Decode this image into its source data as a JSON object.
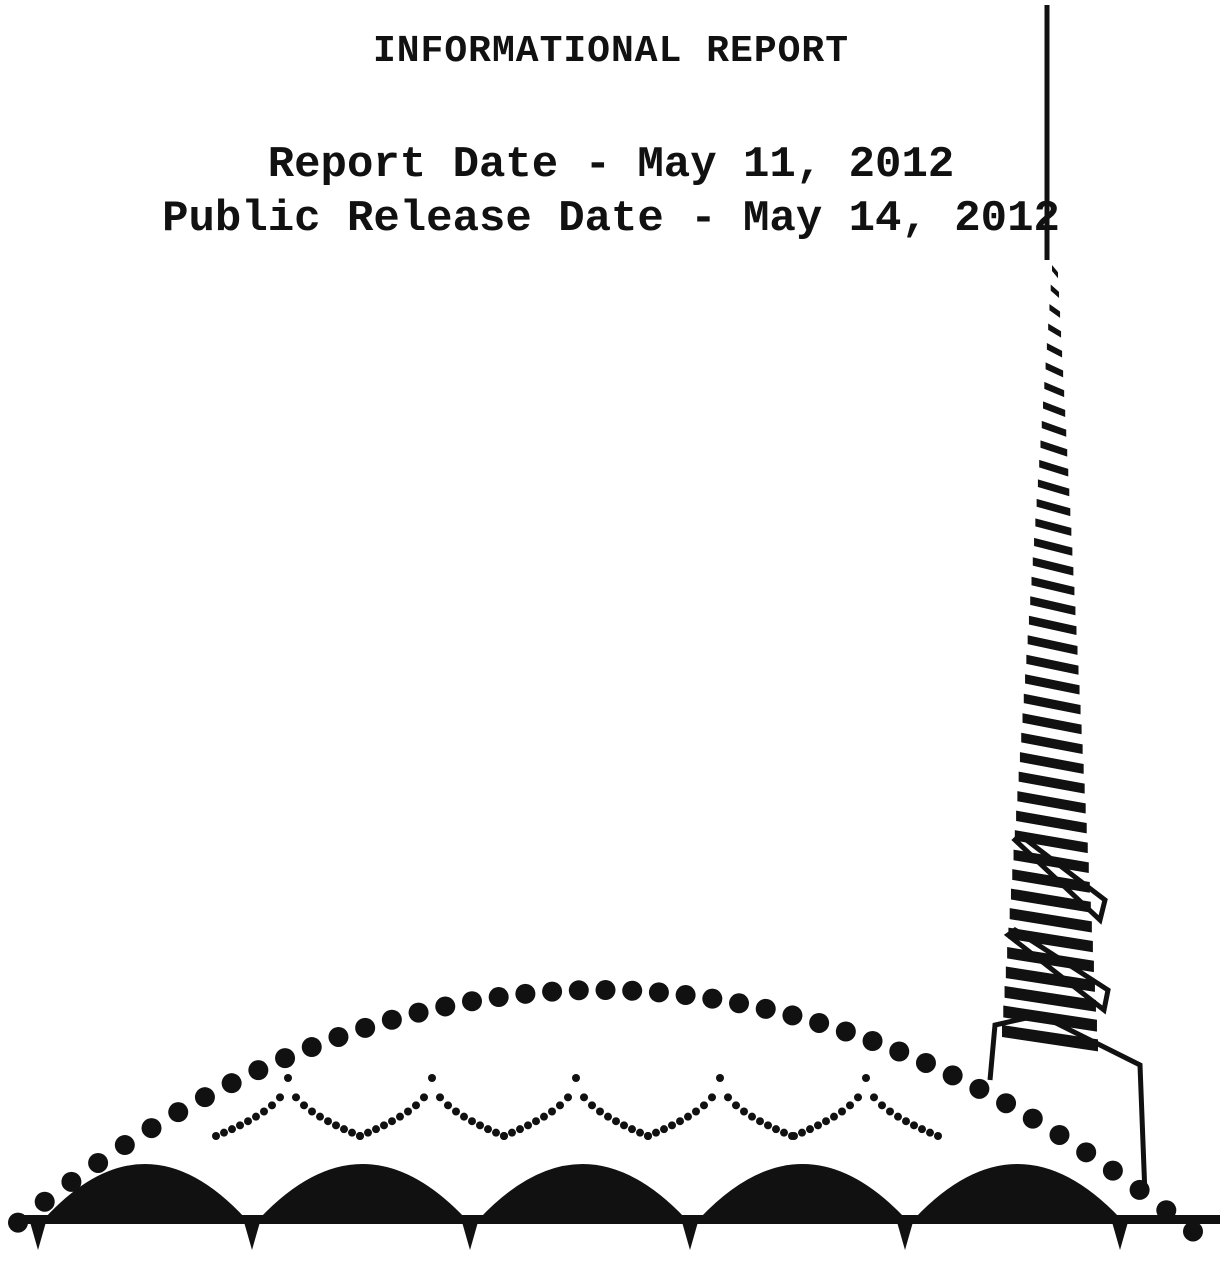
{
  "report": {
    "heading": "INFORMATIONAL REPORT",
    "report_date": "Report Date - May 11, 2012",
    "public_release_date": "Public Release Date - May 14, 2012"
  },
  "artwork": {
    "icon": "arched-bridge-with-spire-line-art",
    "ink_color": "#111111"
  }
}
